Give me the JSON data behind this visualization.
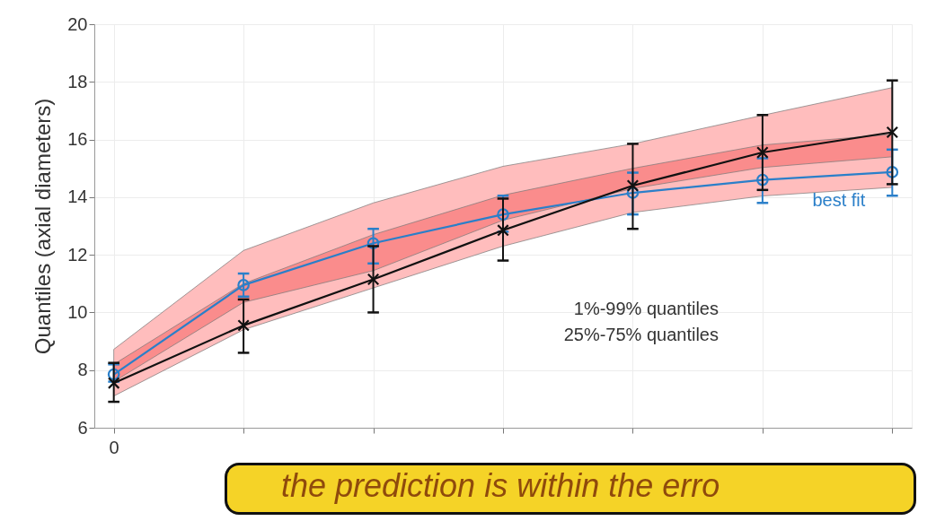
{
  "chart_data": {
    "type": "line",
    "ylabel": "Quantiles (axial diameters)",
    "categories": [
      "0",
      null,
      null,
      null,
      null,
      null,
      null
    ],
    "ylim": [
      6,
      20
    ],
    "yticks": [
      6,
      8,
      10,
      12,
      14,
      16,
      18,
      20
    ],
    "grid": true,
    "series": [
      {
        "name": "best fit",
        "color": "#2a7fc9",
        "marker": "circle",
        "values": [
          7.85,
          10.95,
          12.4,
          13.4,
          14.15,
          14.6,
          14.87
        ],
        "lower": [
          7.6,
          10.35,
          11.45,
          13.2,
          14.3,
          15.03,
          15.4
        ],
        "upper": [
          8.2,
          11.0,
          12.7,
          14.07,
          15.0,
          15.81,
          16.18
        ],
        "errors": [
          [
            7.6,
            8.2
          ],
          [
            10.55,
            11.35
          ],
          [
            11.7,
            12.9
          ],
          [
            12.8,
            14.05
          ],
          [
            13.4,
            14.85
          ],
          [
            13.8,
            15.35
          ],
          [
            14.05,
            15.65
          ]
        ]
      },
      {
        "color": "#111111",
        "marker": "cross",
        "values": [
          7.55,
          9.55,
          11.15,
          12.85,
          14.4,
          15.55,
          16.25
        ],
        "lower": [
          7.1,
          9.4,
          10.85,
          12.3,
          13.47,
          14.04,
          14.34
        ],
        "upper": [
          8.72,
          12.15,
          13.8,
          15.07,
          15.85,
          16.84,
          17.8
        ],
        "errors": [
          [
            6.9,
            8.25
          ],
          [
            8.6,
            10.45
          ],
          [
            10.0,
            12.3
          ],
          [
            11.8,
            13.95
          ],
          [
            12.9,
            15.85
          ],
          [
            14.25,
            16.85
          ],
          [
            14.45,
            18.05
          ]
        ]
      }
    ],
    "annotations": [
      "1%-99% quantiles",
      "25%-75% quantiles",
      "the prediction is within the erro"
    ]
  }
}
